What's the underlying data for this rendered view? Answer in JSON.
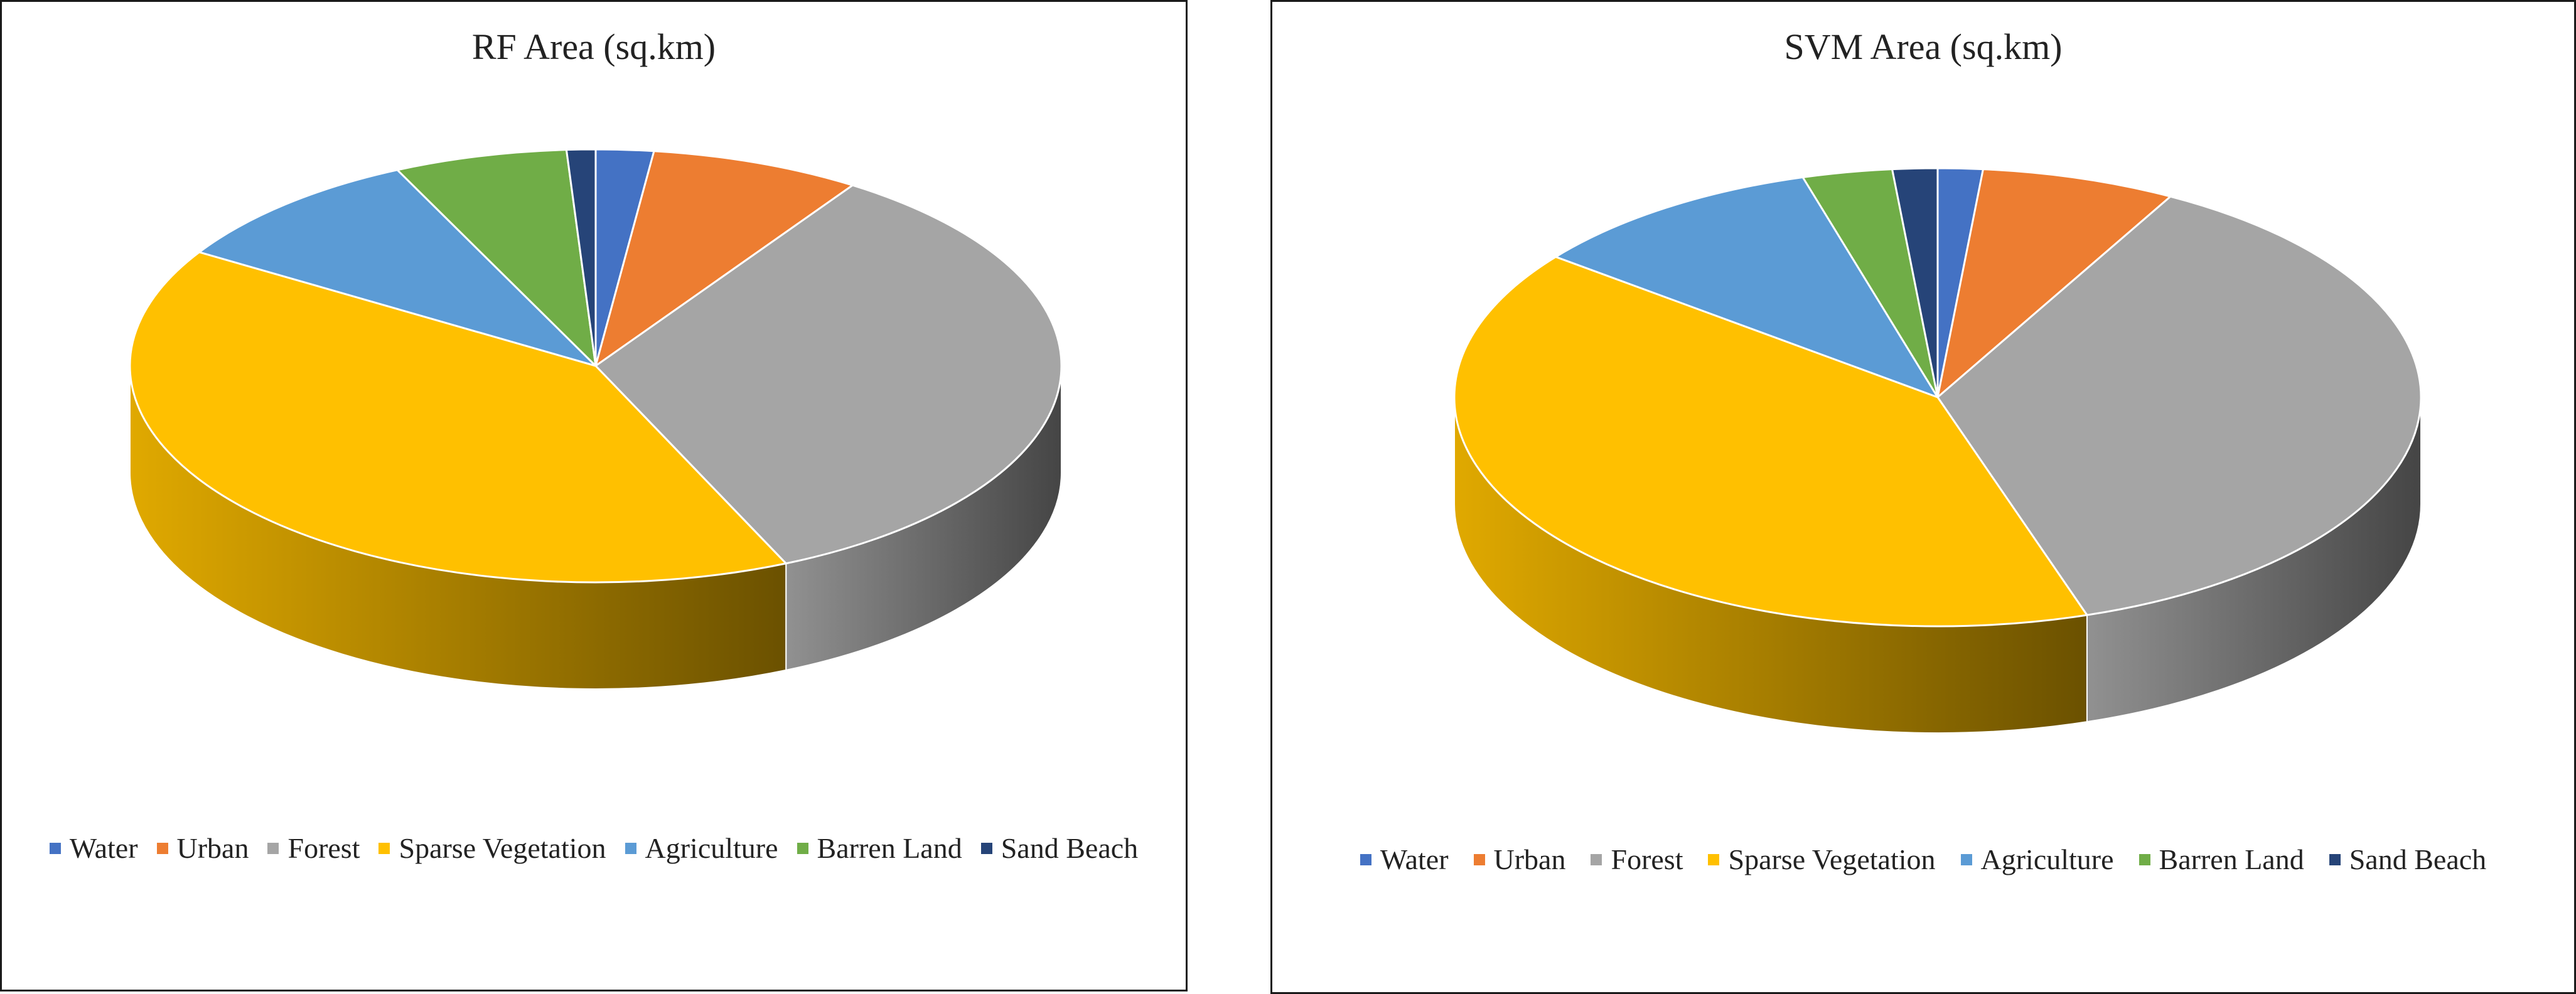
{
  "chart_data": [
    {
      "type": "pie",
      "title": "RF Area (sq.km)",
      "categories": [
        "Water",
        "Urban",
        "Forest",
        "Sparse Vegetation",
        "Agriculture",
        "Barren Land",
        "Sand Beach"
      ],
      "values": [
        2.0,
        7.3,
        34.0,
        40.5,
        9.2,
        6.0,
        1.0
      ],
      "colors": [
        "#4472c4",
        "#ed7d31",
        "#a5a5a5",
        "#ffc000",
        "#5b9bd5",
        "#70ad47",
        "#264478"
      ],
      "legend": "bottom",
      "style": "3d-pie"
    },
    {
      "type": "pie",
      "title": "SVM Area  (sq.km)",
      "categories": [
        "Water",
        "Urban",
        "Forest",
        "Sparse Vegetation",
        "Agriculture",
        "Barren Land",
        "Sand Beach"
      ],
      "values": [
        1.5,
        6.5,
        37.0,
        40.5,
        10.0,
        3.0,
        1.5
      ],
      "colors": [
        "#4472c4",
        "#ed7d31",
        "#a5a5a5",
        "#ffc000",
        "#5b9bd5",
        "#70ad47",
        "#264478"
      ],
      "legend": "bottom",
      "style": "3d-pie"
    }
  ]
}
